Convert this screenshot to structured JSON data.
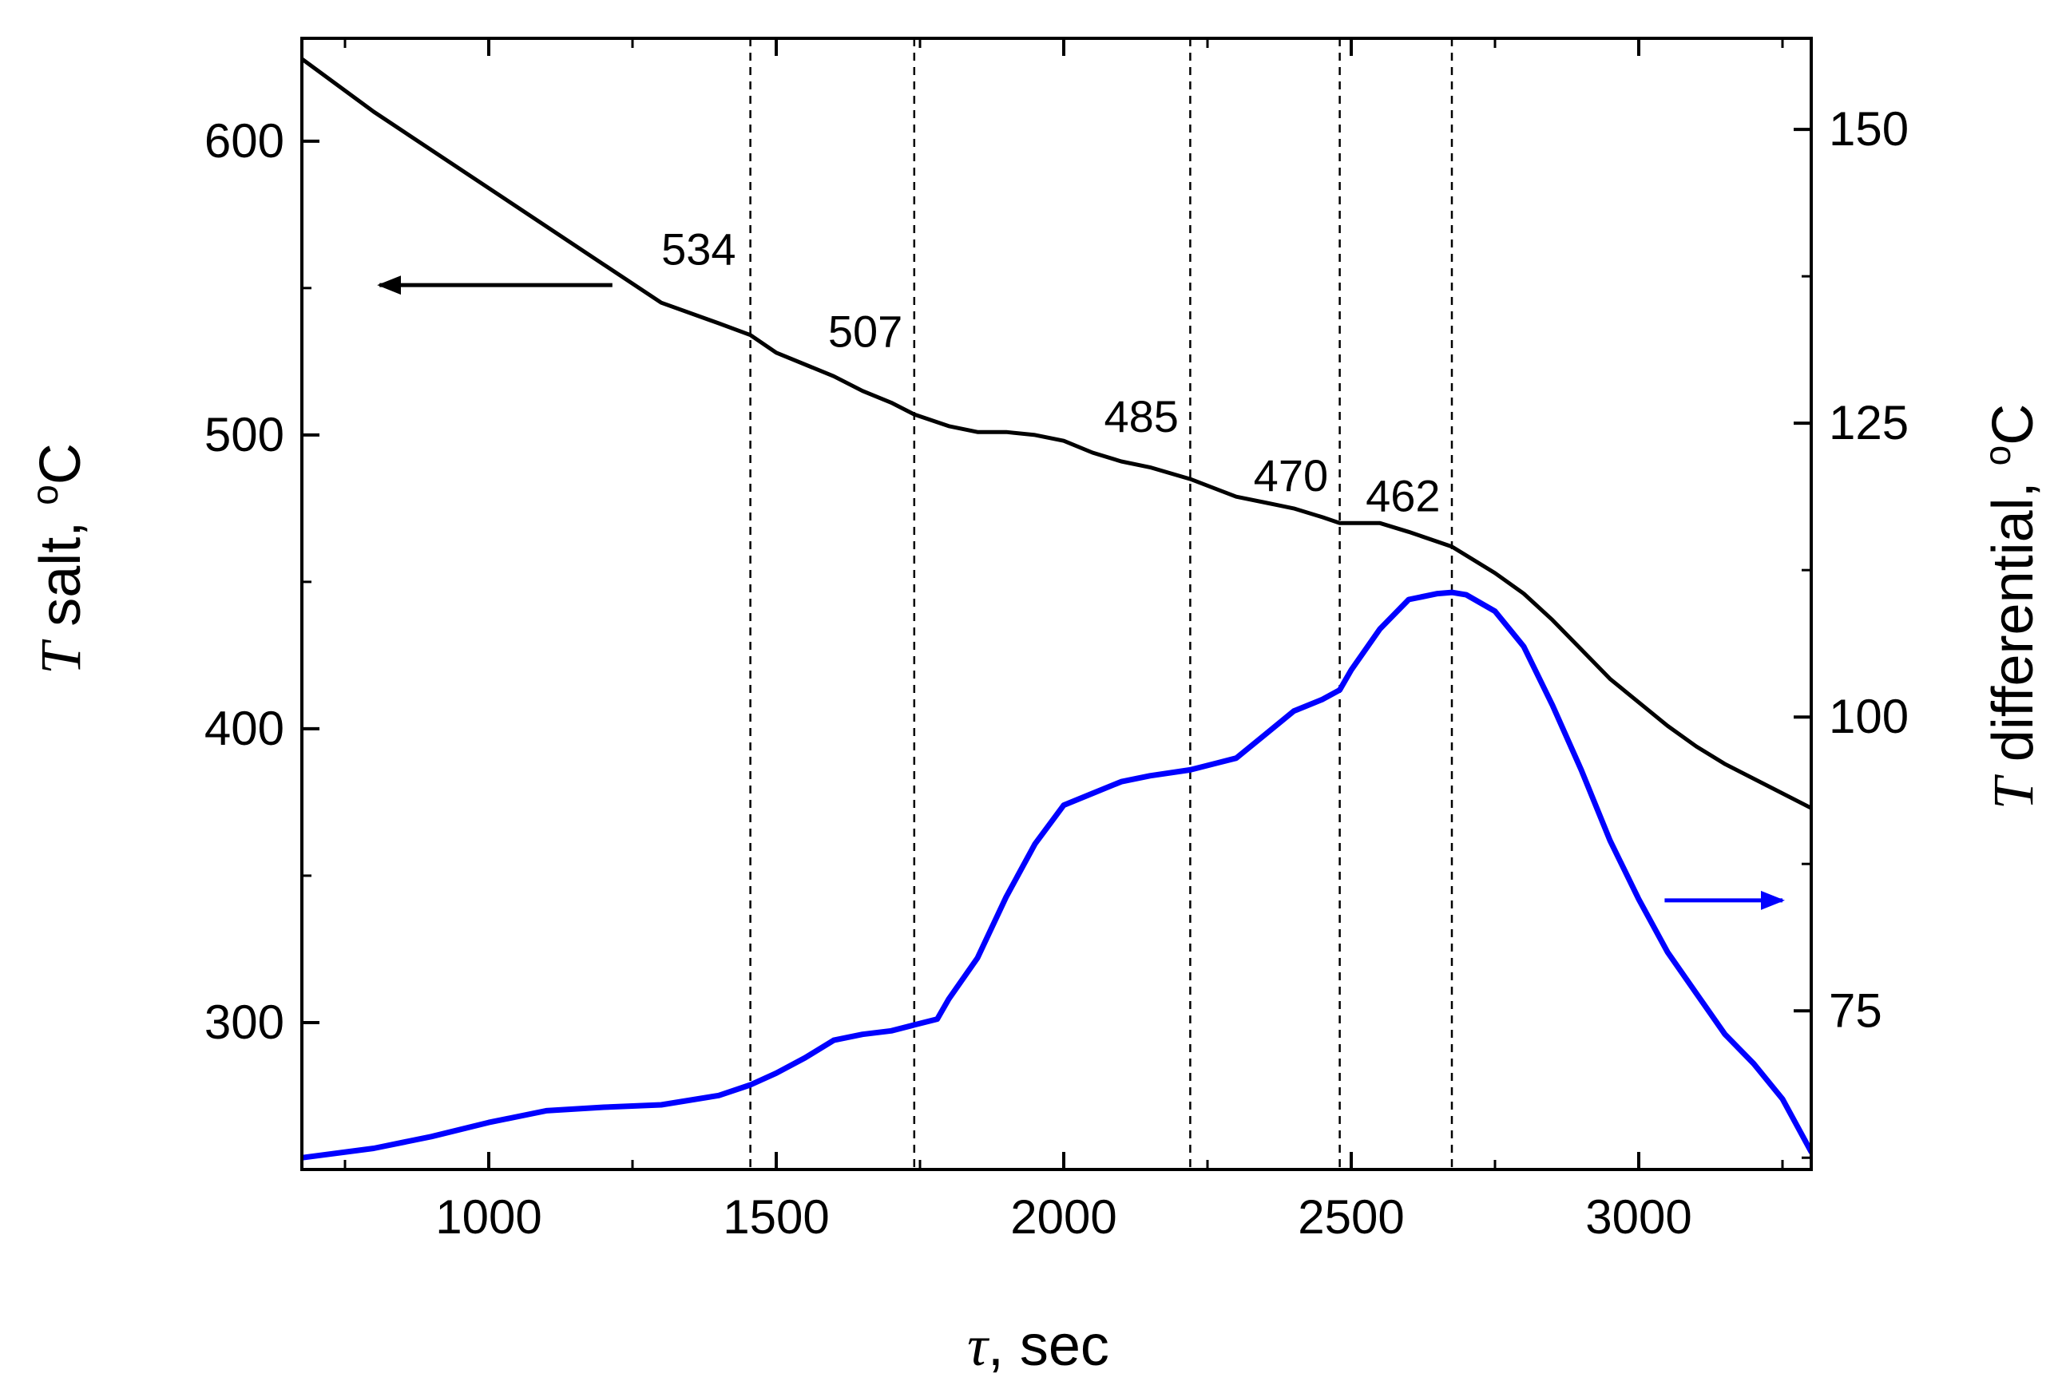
{
  "chart_data": {
    "type": "line",
    "xlabel": {
      "symbol": "τ",
      "text": ", sec"
    },
    "ylabel_left": {
      "symbol": "T",
      "text": " salt, ",
      "unit_sup": "o",
      "unit": "C"
    },
    "ylabel_right": {
      "symbol": "T",
      "text": " differential, ",
      "unit_sup": "o",
      "unit": "C"
    },
    "xlim": [
      675,
      3300
    ],
    "ylim_left": [
      250,
      635
    ],
    "ylim_right": [
      61.5,
      157.75
    ],
    "x_ticks": [
      1000,
      1500,
      2000,
      2500,
      3000
    ],
    "x_tick_labels": [
      "1000",
      "1500",
      "2000",
      "2500",
      "3000"
    ],
    "y_left_ticks": [
      300,
      400,
      500,
      600
    ],
    "y_left_tick_labels": [
      "300",
      "400",
      "500",
      "600"
    ],
    "y_right_ticks": [
      75,
      100,
      125,
      150
    ],
    "y_right_tick_labels": [
      "75",
      "100",
      "125",
      "150"
    ],
    "vertical_lines": [
      1455,
      1740,
      2220,
      2480,
      2675
    ],
    "annotations": [
      {
        "text": "534",
        "x": 1365,
        "y": 558
      },
      {
        "text": "507",
        "x": 1655,
        "y": 530
      },
      {
        "text": "485",
        "x": 2135,
        "y": 501
      },
      {
        "text": "470",
        "x": 2395,
        "y": 481
      },
      {
        "text": "462",
        "x": 2590,
        "y": 474
      }
    ],
    "arrows": [
      {
        "name": "left-axis-arrow",
        "axis": "left",
        "from": {
          "x": 1215,
          "y": 551
        },
        "to": {
          "x": 810,
          "y": 551
        }
      },
      {
        "name": "right-axis-arrow",
        "axis": "right",
        "from": {
          "x": 3045,
          "y": 84.4
        },
        "to": {
          "x": 3250,
          "y": 84.4
        }
      }
    ],
    "series": [
      {
        "name": "T salt",
        "axis": "left",
        "color": "#000000",
        "x": [
          675,
          800,
          1000,
          1200,
          1300,
          1400,
          1455,
          1500,
          1600,
          1650,
          1700,
          1740,
          1800,
          1850,
          1900,
          1950,
          2000,
          2050,
          2100,
          2150,
          2220,
          2300,
          2350,
          2400,
          2450,
          2480,
          2550,
          2600,
          2675,
          2750,
          2800,
          2850,
          2900,
          2950,
          3000,
          3050,
          3100,
          3150,
          3200,
          3250,
          3300
        ],
        "y": [
          628,
          610,
          584,
          558,
          545,
          538,
          534,
          528,
          520,
          515,
          511,
          507,
          503,
          501,
          501,
          500,
          498,
          494,
          491,
          489,
          485,
          479,
          477,
          475,
          472,
          470,
          470,
          467,
          462,
          453,
          446,
          437,
          427,
          417,
          409,
          401,
          394,
          388,
          383,
          378,
          373
        ]
      },
      {
        "name": "T differential",
        "axis": "right",
        "color": "#0000ff",
        "x": [
          675,
          800,
          900,
          1000,
          1100,
          1200,
          1300,
          1400,
          1455,
          1500,
          1550,
          1600,
          1650,
          1700,
          1740,
          1780,
          1800,
          1850,
          1900,
          1950,
          2000,
          2050,
          2100,
          2150,
          2220,
          2300,
          2350,
          2400,
          2450,
          2480,
          2500,
          2550,
          2600,
          2650,
          2675,
          2700,
          2750,
          2800,
          2850,
          2900,
          2950,
          3000,
          3050,
          3100,
          3150,
          3200,
          3250,
          3300
        ],
        "y": [
          62.5,
          63.3,
          64.3,
          65.5,
          66.5,
          66.8,
          67.0,
          67.8,
          68.7,
          69.7,
          71.0,
          72.5,
          73.0,
          73.3,
          73.8,
          74.3,
          76.0,
          79.5,
          84.7,
          89.2,
          92.5,
          93.5,
          94.5,
          95.0,
          95.5,
          96.5,
          98.5,
          100.5,
          101.5,
          102.3,
          104.0,
          107.5,
          110.0,
          110.5,
          110.6,
          110.4,
          109.0,
          106.0,
          101.0,
          95.5,
          89.5,
          84.5,
          80.0,
          76.5,
          73.0,
          70.5,
          67.5,
          63.0
        ]
      }
    ]
  }
}
